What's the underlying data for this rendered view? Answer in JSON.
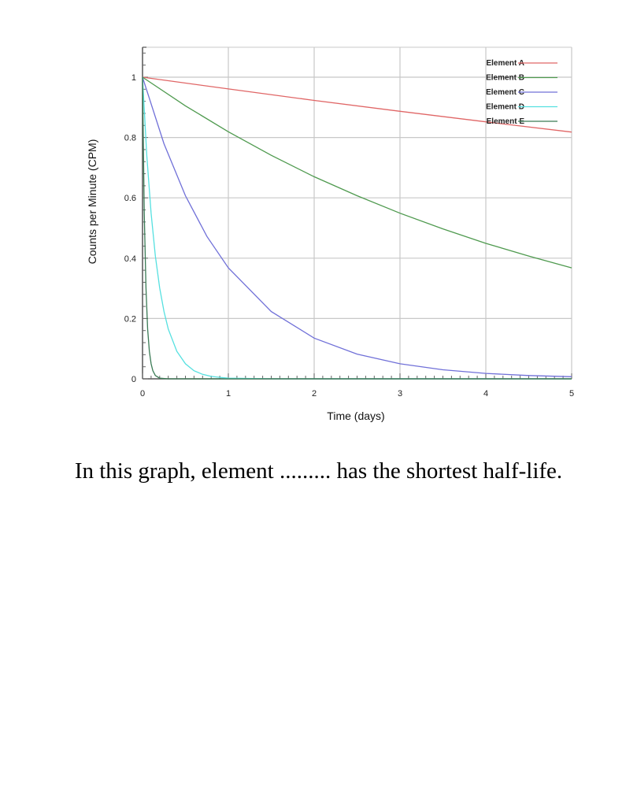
{
  "chart_data": {
    "type": "line",
    "xlabel": "Time (days)",
    "ylabel": "Counts per Minute (CPM)",
    "xlim": [
      0,
      5
    ],
    "ylim": [
      0,
      1.1
    ],
    "x_ticks": [
      0,
      1,
      2,
      3,
      4,
      5
    ],
    "x_tick_labels": [
      "0",
      "1",
      "2",
      "3",
      "4",
      "5"
    ],
    "y_ticks": [
      0,
      0.2,
      0.4,
      0.6,
      0.8,
      1
    ],
    "y_tick_labels": [
      "0",
      "0.2",
      "0.4",
      "0.6",
      "0.8",
      "1"
    ],
    "grid": true,
    "legend_position": "top-right",
    "series": [
      {
        "name": "Element A",
        "color": "#e06666",
        "x": [
          0,
          1,
          2,
          3,
          4,
          5
        ],
        "values": [
          1,
          0.961,
          0.923,
          0.887,
          0.852,
          0.818
        ]
      },
      {
        "name": "Element B",
        "color": "#4f9a4f",
        "x": [
          0,
          0.5,
          1,
          1.5,
          2,
          2.5,
          3,
          3.5,
          4,
          4.5,
          5
        ],
        "values": [
          1,
          0.905,
          0.819,
          0.741,
          0.67,
          0.607,
          0.549,
          0.497,
          0.449,
          0.407,
          0.368
        ]
      },
      {
        "name": "Element C",
        "color": "#7070d8",
        "x": [
          0,
          0.25,
          0.5,
          0.75,
          1,
          1.5,
          2,
          2.5,
          3,
          3.5,
          4,
          4.5,
          5
        ],
        "values": [
          1,
          0.779,
          0.607,
          0.472,
          0.368,
          0.223,
          0.135,
          0.082,
          0.05,
          0.03,
          0.018,
          0.011,
          0.007
        ]
      },
      {
        "name": "Element D",
        "color": "#55e0e0",
        "x": [
          0,
          0.05,
          0.1,
          0.15,
          0.2,
          0.25,
          0.3,
          0.4,
          0.5,
          0.6,
          0.7,
          0.8,
          0.9,
          1,
          1.5,
          2,
          3,
          4,
          5
        ],
        "values": [
          1,
          0.741,
          0.549,
          0.407,
          0.301,
          0.223,
          0.165,
          0.091,
          0.05,
          0.027,
          0.015,
          0.008,
          0.005,
          0.002,
          0,
          0,
          0,
          0,
          0
        ]
      },
      {
        "name": "Element E",
        "color": "#3a7a55",
        "x": [
          0,
          0.02,
          0.04,
          0.06,
          0.08,
          0.1,
          0.12,
          0.15,
          0.2,
          0.3,
          1,
          2,
          3,
          4,
          5
        ],
        "values": [
          1,
          0.549,
          0.301,
          0.165,
          0.091,
          0.05,
          0.027,
          0.011,
          0.002,
          0,
          0,
          0,
          0,
          0,
          0
        ]
      }
    ]
  },
  "question": "In this graph, element ......... has the shortest half-life."
}
